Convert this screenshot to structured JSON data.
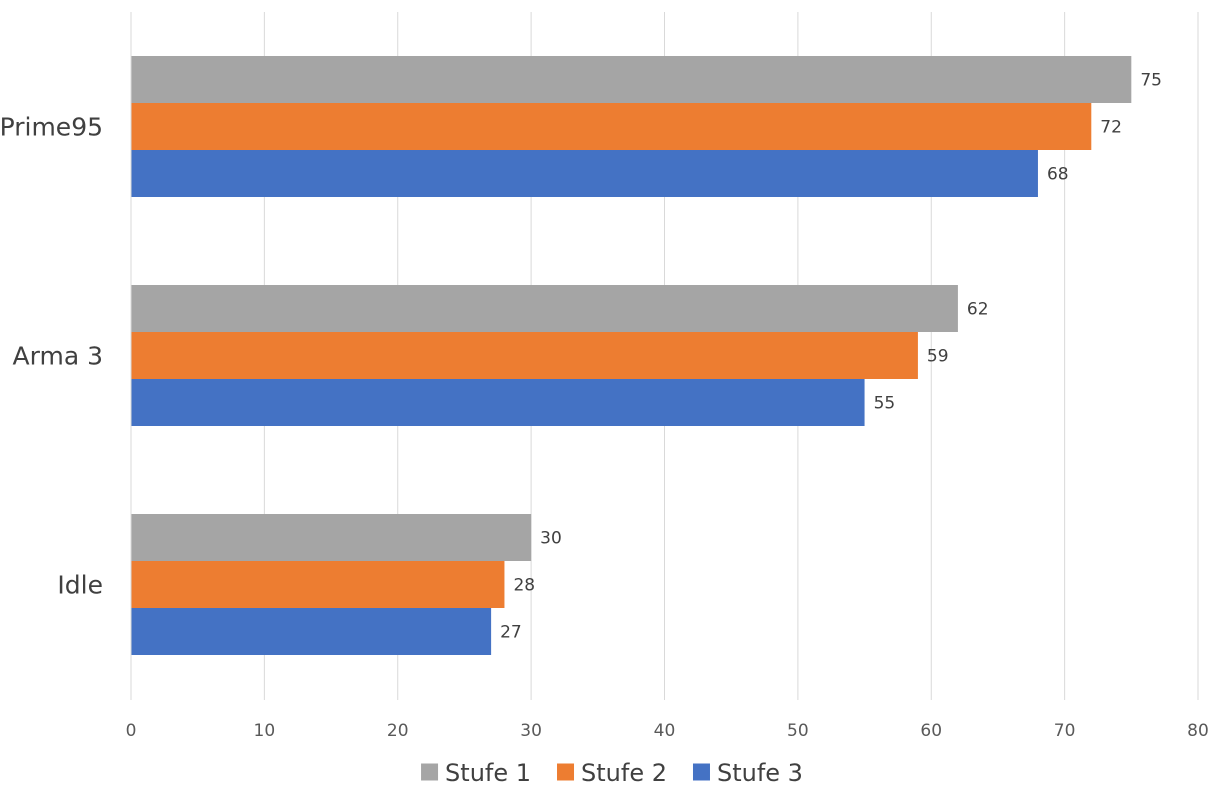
{
  "chart_data": {
    "type": "bar",
    "orientation": "horizontal",
    "categories": [
      "Idle",
      "Arma 3",
      "Prime95"
    ],
    "series": [
      {
        "name": "Stufe 1",
        "color": "#A5A5A5",
        "values": [
          30,
          62,
          75
        ]
      },
      {
        "name": "Stufe 2",
        "color": "#ED7D31",
        "values": [
          28,
          59,
          72
        ]
      },
      {
        "name": "Stufe 3",
        "color": "#4472C4",
        "values": [
          27,
          55,
          68
        ]
      }
    ],
    "xlim": [
      0,
      80
    ],
    "xticks": [
      0,
      10,
      20,
      30,
      40,
      50,
      60,
      70,
      80
    ],
    "grid": true,
    "legend_position": "bottom",
    "data_labels": true
  }
}
